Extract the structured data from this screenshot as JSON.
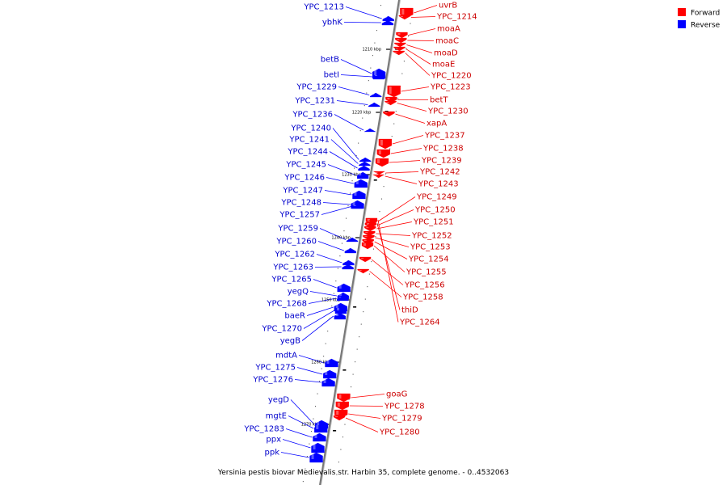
{
  "caption": "Yersinia pestis biovar Medievalis str. Harbin 35, complete genome. - 0..4532063",
  "colors": {
    "forward": "#ff0000",
    "reverse": "#0000ff",
    "axis": "#777777"
  },
  "legend": [
    {
      "label": "Forward",
      "strand": "forward"
    },
    {
      "label": "Reverse",
      "strand": "reverse"
    }
  ],
  "ticks": [
    "1210 kbp",
    "1220 kbp",
    "1230 kbp",
    "1240 kbp",
    "1250 kbp",
    "1260 kbp",
    "1270 kbp"
  ],
  "forward_genes": [
    "uvrB",
    "YPC_1214",
    "moaA",
    "moaC",
    "moaD",
    "moaE",
    "YPC_1220",
    "YPC_1223",
    "betT",
    "YPC_1230",
    "xapA",
    "YPC_1237",
    "YPC_1238",
    "YPC_1239",
    "YPC_1242",
    "YPC_1243",
    "YPC_1249",
    "YPC_1250",
    "YPC_1251",
    "YPC_1252",
    "YPC_1253",
    "YPC_1254",
    "YPC_1255",
    "YPC_1256",
    "YPC_1258",
    "thiD",
    "YPC_1264",
    "goaG",
    "YPC_1278",
    "YPC_1279",
    "YPC_1280"
  ],
  "reverse_genes": [
    "YPC_1213",
    "ybhK",
    "betB",
    "betI",
    "YPC_1229",
    "YPC_1231",
    "YPC_1236",
    "YPC_1240",
    "YPC_1241",
    "YPC_1244",
    "YPC_1245",
    "YPC_1246",
    "YPC_1247",
    "YPC_1248",
    "YPC_1257",
    "YPC_1259",
    "YPC_1260",
    "YPC_1262",
    "YPC_1263",
    "YPC_1265",
    "yegQ",
    "YPC_1268",
    "baeR",
    "YPC_1270",
    "yegB",
    "mdtA",
    "YPC_1275",
    "YPC_1276",
    "yegD",
    "mgtE",
    "YPC_1283",
    "ppx",
    "ppk"
  ]
}
